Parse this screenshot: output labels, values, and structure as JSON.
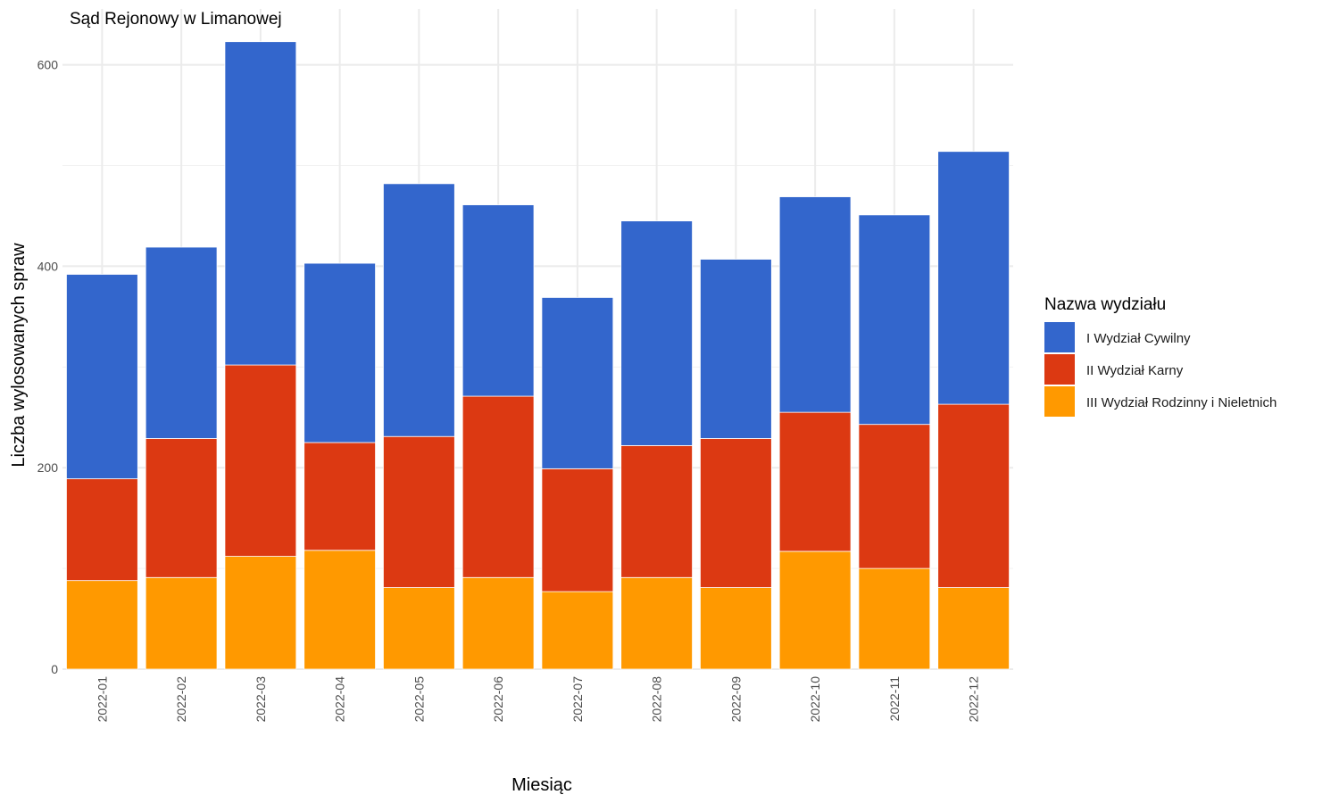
{
  "chart_data": {
    "type": "bar",
    "stacked": true,
    "title": "Sąd Rejonowy w Limanowej",
    "xlabel": "Miesiąc",
    "ylabel": "Liczba wylosowanych spraw",
    "ylim": [
      0,
      640
    ],
    "yticks": [
      0,
      200,
      400,
      600
    ],
    "grid": true,
    "legend_position": "right",
    "legend_title": "Nazwa wydziału",
    "categories": [
      "2022-01",
      "2022-02",
      "2022-03",
      "2022-04",
      "2022-05",
      "2022-06",
      "2022-07",
      "2022-08",
      "2022-09",
      "2022-10",
      "2022-11",
      "2022-12"
    ],
    "series": [
      {
        "name": "I Wydział Cywilny",
        "color": "#3366cc",
        "values": [
          203,
          190,
          321,
          178,
          251,
          190,
          170,
          223,
          178,
          214,
          208,
          251
        ]
      },
      {
        "name": "II Wydział Karny",
        "color": "#dc3912",
        "values": [
          101,
          138,
          190,
          107,
          150,
          180,
          122,
          131,
          148,
          138,
          143,
          182
        ]
      },
      {
        "name": "III Wydział Rodzinny i Nieletnich",
        "color": "#ff9900",
        "values": [
          88,
          91,
          112,
          118,
          81,
          91,
          77,
          91,
          81,
          117,
          100,
          81
        ]
      }
    ]
  }
}
